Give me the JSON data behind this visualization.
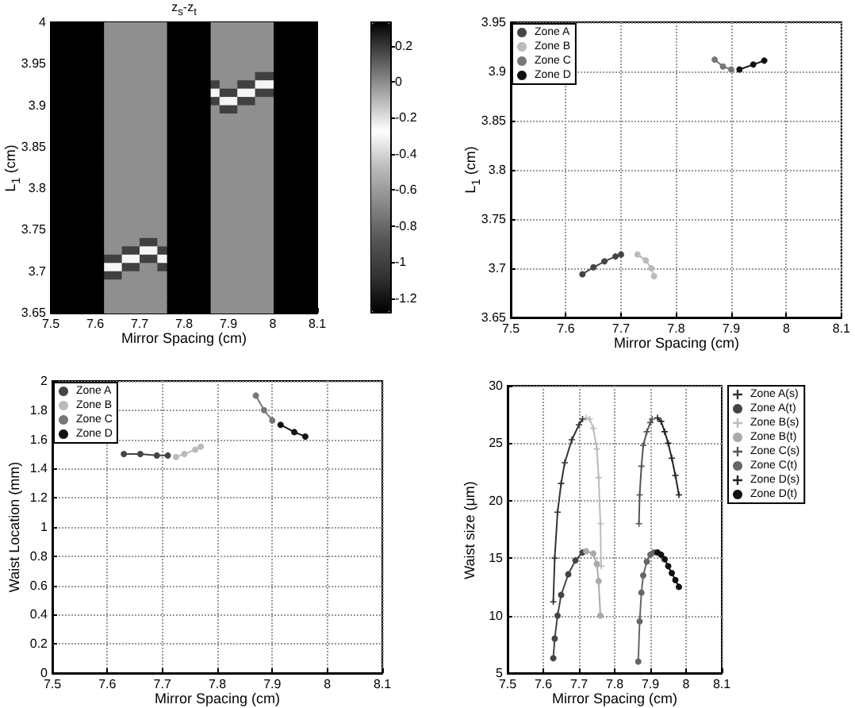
{
  "chart_data": [
    {
      "type": "heatmap",
      "title": "z$_{s}$-z$_{t}$",
      "xlabel": "Mirror Spacing (cm)",
      "ylabel": "L$_{1}$ (cm)",
      "xlim": [
        7.5,
        8.1
      ],
      "xticks": [
        7.5,
        7.6,
        7.7,
        7.8,
        7.9,
        8,
        8.1
      ],
      "ylim": [
        3.65,
        4
      ],
      "yticks": [
        3.65,
        3.7,
        3.75,
        3.8,
        3.85,
        3.9,
        3.95,
        4
      ],
      "clim": [
        -1.28,
        0.33
      ],
      "cticks": [
        0.2,
        0,
        -0.2,
        -0.4,
        -0.6,
        -0.8,
        -1,
        -1.2
      ],
      "cells": [
        [
          null,
          null,
          null,
          null,
          null,
          null,
          -0.65,
          -0.65,
          -0.65,
          -0.65,
          -0.65,
          -0.65,
          -0.65,
          null,
          null,
          null,
          null,
          null,
          -0.65,
          -0.65,
          -0.65,
          -0.65,
          -0.65,
          -0.65,
          -0.65,
          null,
          null,
          null,
          null,
          null
        ],
        [
          null,
          null,
          null,
          null,
          null,
          null,
          -0.65,
          -0.65,
          -0.65,
          -0.65,
          -0.65,
          -0.65,
          -0.65,
          null,
          null,
          null,
          null,
          null,
          -0.65,
          -0.65,
          -0.65,
          -0.65,
          -0.65,
          -0.65,
          -0.65,
          null,
          null,
          null,
          null,
          null
        ],
        [
          null,
          null,
          null,
          null,
          null,
          null,
          -0.65,
          -0.65,
          -0.65,
          -0.65,
          -0.65,
          -0.65,
          -0.65,
          null,
          null,
          null,
          null,
          null,
          -0.65,
          -0.65,
          -0.65,
          -0.65,
          -0.65,
          -0.65,
          -0.65,
          null,
          null,
          null,
          null,
          null
        ],
        [
          null,
          null,
          null,
          null,
          null,
          null,
          -0.65,
          -0.65,
          -0.65,
          -0.65,
          -0.65,
          -0.65,
          -0.65,
          null,
          null,
          null,
          null,
          null,
          -0.65,
          -0.65,
          -0.65,
          -0.65,
          -0.65,
          -0.65,
          -0.65,
          null,
          null,
          null,
          null,
          null
        ],
        [
          null,
          null,
          null,
          null,
          null,
          null,
          -0.65,
          -0.65,
          -0.65,
          -0.65,
          -0.65,
          -0.65,
          -0.65,
          null,
          null,
          null,
          null,
          null,
          -0.65,
          -0.65,
          -0.65,
          -0.65,
          -0.65,
          -0.65,
          -0.65,
          null,
          null,
          null,
          null,
          null
        ],
        [
          null,
          null,
          null,
          null,
          null,
          null,
          -0.65,
          -0.65,
          -0.65,
          -0.65,
          -0.65,
          -0.65,
          -0.65,
          null,
          null,
          null,
          null,
          null,
          -0.65,
          -0.65,
          -0.65,
          -0.65,
          -0.65,
          -0.65,
          -0.65,
          null,
          null,
          null,
          null,
          null
        ],
        [
          null,
          null,
          null,
          null,
          null,
          null,
          -0.65,
          -0.65,
          -0.65,
          -0.65,
          -0.65,
          -0.65,
          -0.65,
          null,
          null,
          null,
          null,
          null,
          -0.65,
          -0.65,
          -0.65,
          -0.65,
          -0.65,
          -1,
          -1,
          null,
          null,
          null,
          null,
          null
        ],
        [
          null,
          null,
          null,
          null,
          null,
          null,
          -0.65,
          -0.65,
          -0.65,
          -0.65,
          -0.65,
          -0.65,
          -0.65,
          null,
          null,
          null,
          null,
          null,
          -1,
          -0.65,
          -0.65,
          -1,
          -1,
          -0.25,
          -0.25,
          null,
          null,
          null,
          null,
          null
        ],
        [
          null,
          null,
          null,
          null,
          null,
          null,
          -0.65,
          -0.65,
          -0.65,
          -0.65,
          -0.65,
          -0.65,
          -0.65,
          null,
          null,
          null,
          null,
          null,
          -0.25,
          -1,
          -1,
          -0.25,
          -0.25,
          -1,
          -1,
          null,
          null,
          null,
          null,
          null
        ],
        [
          null,
          null,
          null,
          null,
          null,
          null,
          -0.65,
          -0.65,
          -0.65,
          -0.65,
          -0.65,
          -0.65,
          -0.65,
          null,
          null,
          null,
          null,
          null,
          -1,
          -0.25,
          -0.25,
          -1,
          -1,
          -0.65,
          -0.65,
          null,
          null,
          null,
          null,
          null
        ],
        [
          null,
          null,
          null,
          null,
          null,
          null,
          -0.65,
          -0.65,
          -0.65,
          -0.65,
          -0.65,
          -0.65,
          -0.65,
          null,
          null,
          null,
          null,
          null,
          -0.65,
          -1,
          -1,
          -0.65,
          -0.65,
          -0.65,
          -0.65,
          null,
          null,
          null,
          null,
          null
        ],
        [
          null,
          null,
          null,
          null,
          null,
          null,
          -0.65,
          -0.65,
          -0.65,
          -0.65,
          -0.65,
          -0.65,
          -0.65,
          null,
          null,
          null,
          null,
          null,
          -0.65,
          -0.65,
          -0.65,
          -0.65,
          -0.65,
          -0.65,
          -0.65,
          null,
          null,
          null,
          null,
          null
        ],
        [
          null,
          null,
          null,
          null,
          null,
          null,
          -0.65,
          -0.65,
          -0.65,
          -0.65,
          -0.65,
          -0.65,
          -0.65,
          null,
          null,
          null,
          null,
          null,
          -0.65,
          -0.65,
          -0.65,
          -0.65,
          -0.65,
          -0.65,
          -0.65,
          null,
          null,
          null,
          null,
          null
        ],
        [
          null,
          null,
          null,
          null,
          null,
          null,
          -0.65,
          -0.65,
          -0.65,
          -0.65,
          -0.65,
          -0.65,
          -0.65,
          null,
          null,
          null,
          null,
          null,
          -0.65,
          -0.65,
          -0.65,
          -0.65,
          -0.65,
          -0.65,
          -0.65,
          null,
          null,
          null,
          null,
          null
        ],
        [
          null,
          null,
          null,
          null,
          null,
          null,
          -0.65,
          -0.65,
          -0.65,
          -0.65,
          -0.65,
          -0.65,
          -0.65,
          null,
          null,
          null,
          null,
          null,
          -0.65,
          -0.65,
          -0.65,
          -0.65,
          -0.65,
          -0.65,
          -0.65,
          null,
          null,
          null,
          null,
          null
        ],
        [
          null,
          null,
          null,
          null,
          null,
          null,
          -0.65,
          -0.65,
          -0.65,
          -0.65,
          -0.65,
          -0.65,
          -0.65,
          null,
          null,
          null,
          null,
          null,
          -0.65,
          -0.65,
          -0.65,
          -0.65,
          -0.65,
          -0.65,
          -0.65,
          null,
          null,
          null,
          null,
          null
        ],
        [
          null,
          null,
          null,
          null,
          null,
          null,
          -0.65,
          -0.65,
          -0.65,
          -0.65,
          -0.65,
          -0.65,
          -0.65,
          null,
          null,
          null,
          null,
          null,
          -0.65,
          -0.65,
          -0.65,
          -0.65,
          -0.65,
          -0.65,
          -0.65,
          null,
          null,
          null,
          null,
          null
        ],
        [
          null,
          null,
          null,
          null,
          null,
          null,
          -0.65,
          -0.65,
          -0.65,
          -0.65,
          -0.65,
          -0.65,
          -0.65,
          null,
          null,
          null,
          null,
          null,
          -0.65,
          -0.65,
          -0.65,
          -0.65,
          -0.65,
          -0.65,
          -0.65,
          null,
          null,
          null,
          null,
          null
        ],
        [
          null,
          null,
          null,
          null,
          null,
          null,
          -0.65,
          -0.65,
          -0.65,
          -0.65,
          -0.65,
          -0.65,
          -0.65,
          null,
          null,
          null,
          null,
          null,
          -0.65,
          -0.65,
          -0.65,
          -0.65,
          -0.65,
          -0.65,
          -0.65,
          null,
          null,
          null,
          null,
          null
        ],
        [
          null,
          null,
          null,
          null,
          null,
          null,
          -0.65,
          -0.65,
          -0.65,
          -0.65,
          -0.65,
          -0.65,
          -0.65,
          null,
          null,
          null,
          null,
          null,
          -0.65,
          -0.65,
          -0.65,
          -0.65,
          -0.65,
          -0.65,
          -0.65,
          null,
          null,
          null,
          null,
          null
        ],
        [
          null,
          null,
          null,
          null,
          null,
          null,
          -0.65,
          -0.65,
          -0.65,
          -0.65,
          -0.65,
          -0.65,
          -0.65,
          null,
          null,
          null,
          null,
          null,
          -0.65,
          -0.65,
          -0.65,
          -0.65,
          -0.65,
          -0.65,
          -0.65,
          null,
          null,
          null,
          null,
          null
        ],
        [
          null,
          null,
          null,
          null,
          null,
          null,
          -0.65,
          -0.65,
          -0.65,
          -0.65,
          -0.65,
          -0.65,
          -0.65,
          null,
          null,
          null,
          null,
          null,
          -0.65,
          -0.65,
          -0.65,
          -0.65,
          -0.65,
          -0.65,
          -0.65,
          null,
          null,
          null,
          null,
          null
        ],
        [
          null,
          null,
          null,
          null,
          null,
          null,
          -0.65,
          -0.65,
          -0.65,
          -0.65,
          -0.65,
          -0.65,
          -0.65,
          null,
          null,
          null,
          null,
          null,
          -0.65,
          -0.65,
          -0.65,
          -0.65,
          -0.65,
          -0.65,
          -0.65,
          null,
          null,
          null,
          null,
          null
        ],
        [
          null,
          null,
          null,
          null,
          null,
          null,
          -0.65,
          -0.65,
          -0.65,
          -0.65,
          -0.65,
          -0.65,
          -0.65,
          null,
          null,
          null,
          null,
          null,
          -0.65,
          -0.65,
          -0.65,
          -0.65,
          -0.65,
          -0.65,
          -0.65,
          null,
          null,
          null,
          null,
          null
        ],
        [
          null,
          null,
          null,
          null,
          null,
          null,
          -0.65,
          -0.65,
          -0.65,
          -0.65,
          -0.65,
          -0.65,
          -0.65,
          null,
          null,
          null,
          null,
          null,
          -0.65,
          -0.65,
          -0.65,
          -0.65,
          -0.65,
          -0.65,
          -0.65,
          null,
          null,
          null,
          null,
          null
        ],
        [
          null,
          null,
          null,
          null,
          null,
          null,
          -0.65,
          -0.65,
          -0.65,
          -0.65,
          -0.65,
          -0.65,
          -0.65,
          null,
          null,
          null,
          null,
          null,
          -0.65,
          -0.65,
          -0.65,
          -0.65,
          -0.65,
          -0.65,
          -0.65,
          null,
          null,
          null,
          null,
          null
        ],
        [
          null,
          null,
          null,
          null,
          null,
          null,
          -0.65,
          -0.65,
          -0.65,
          -0.65,
          -1,
          -1,
          -0.65,
          null,
          null,
          null,
          null,
          null,
          -0.65,
          -0.65,
          -0.65,
          -0.65,
          -0.65,
          -0.65,
          -0.65,
          null,
          null,
          null,
          null,
          null
        ],
        [
          null,
          null,
          null,
          null,
          null,
          null,
          -0.65,
          -0.65,
          -1,
          -1,
          -0.25,
          -0.25,
          -1,
          null,
          null,
          null,
          null,
          null,
          -0.65,
          -0.65,
          -0.65,
          -0.65,
          -0.65,
          -0.65,
          -0.65,
          null,
          null,
          null,
          null,
          null
        ],
        [
          null,
          null,
          null,
          null,
          null,
          null,
          -1,
          -1,
          -0.25,
          -0.25,
          -1,
          -1,
          -0.25,
          null,
          null,
          null,
          null,
          null,
          -0.65,
          -0.65,
          -0.65,
          -0.65,
          -0.65,
          -0.65,
          -0.65,
          null,
          null,
          null,
          null,
          null
        ],
        [
          null,
          null,
          null,
          null,
          null,
          null,
          -0.25,
          -0.25,
          -1,
          -1,
          -0.65,
          -0.65,
          -1,
          null,
          null,
          null,
          null,
          null,
          -0.65,
          -0.65,
          -0.65,
          -0.65,
          -0.65,
          -0.65,
          -0.65,
          null,
          null,
          null,
          null,
          null
        ],
        [
          null,
          null,
          null,
          null,
          null,
          null,
          -1,
          -1,
          -0.65,
          -0.65,
          -0.65,
          -0.65,
          -0.65,
          null,
          null,
          null,
          null,
          null,
          -0.65,
          -0.65,
          -0.65,
          -0.65,
          -0.65,
          -0.65,
          -0.65,
          null,
          null,
          null,
          null,
          null
        ],
        [
          null,
          null,
          null,
          null,
          null,
          null,
          -0.65,
          -0.65,
          -0.65,
          -0.65,
          -0.65,
          -0.65,
          -0.65,
          null,
          null,
          null,
          null,
          null,
          -0.65,
          -0.65,
          -0.65,
          -0.65,
          -0.65,
          -0.65,
          -0.65,
          null,
          null,
          null,
          null,
          null
        ],
        [
          null,
          null,
          null,
          null,
          null,
          null,
          -0.65,
          -0.65,
          -0.65,
          -0.65,
          -0.65,
          -0.65,
          -0.65,
          null,
          null,
          null,
          null,
          null,
          -0.65,
          -0.65,
          -0.65,
          -0.65,
          -0.65,
          -0.65,
          -0.65,
          null,
          null,
          null,
          null,
          null
        ],
        [
          null,
          null,
          null,
          null,
          null,
          null,
          -0.65,
          -0.65,
          -0.65,
          -0.65,
          -0.65,
          -0.65,
          -0.65,
          null,
          null,
          null,
          null,
          null,
          -0.65,
          -0.65,
          -0.65,
          -0.65,
          -0.65,
          -0.65,
          -0.65,
          null,
          null,
          null,
          null,
          null
        ],
        [
          null,
          null,
          null,
          null,
          null,
          null,
          -0.65,
          -0.65,
          -0.65,
          -0.65,
          -0.65,
          -0.65,
          -0.65,
          null,
          null,
          null,
          null,
          null,
          -0.65,
          -0.65,
          -0.65,
          -0.65,
          -0.65,
          -0.65,
          -0.65,
          null,
          null,
          null,
          null,
          null
        ]
      ]
    },
    {
      "type": "line",
      "xlabel": "Mirror Spacing (cm)",
      "ylabel": "L$_{1}$ (cm)",
      "xlim": [
        7.5,
        8.1
      ],
      "xticks": [
        7.5,
        7.6,
        7.7,
        7.8,
        7.9,
        8,
        8.1
      ],
      "ylim": [
        3.65,
        3.95
      ],
      "yticks": [
        3.65,
        3.7,
        3.75,
        3.8,
        3.85,
        3.9,
        3.95
      ],
      "grid": true,
      "legend": "top left",
      "marker": "circle",
      "line_style": "solid",
      "series": [
        {
          "name": "Zone A",
          "color": "#444444",
          "x": [
            7.63,
            7.65,
            7.67,
            7.69,
            7.7
          ],
          "values": [
            3.694,
            3.701,
            3.707,
            3.712,
            3.714
          ]
        },
        {
          "name": "Zone B",
          "color": "#bbbbbb",
          "x": [
            7.73,
            7.745,
            7.755,
            7.76
          ],
          "values": [
            3.714,
            3.708,
            3.7,
            3.692
          ]
        },
        {
          "name": "Zone C",
          "color": "#777777",
          "x": [
            7.87,
            7.885,
            7.9
          ],
          "values": [
            3.912,
            3.905,
            3.902
          ]
        },
        {
          "name": "Zone D",
          "color": "#111111",
          "x": [
            7.915,
            7.94,
            7.96
          ],
          "values": [
            3.902,
            3.907,
            3.911
          ]
        }
      ]
    },
    {
      "type": "line",
      "xlabel": "Mirror Spacing (cm)",
      "ylabel": "Waist Location (mm)",
      "xlim": [
        7.5,
        8.1
      ],
      "xticks": [
        7.5,
        7.6,
        7.7,
        7.8,
        7.9,
        8,
        8.1
      ],
      "ylim": [
        0,
        2
      ],
      "yticks": [
        0,
        0.2,
        0.4,
        0.6,
        0.8,
        1,
        1.2,
        1.4,
        1.6,
        1.8,
        2
      ],
      "grid": true,
      "legend": "top left",
      "marker": "circle",
      "line_style": "solid",
      "series": [
        {
          "name": "Zone A",
          "color": "#444444",
          "x": [
            7.63,
            7.66,
            7.69,
            7.71
          ],
          "values": [
            1.5,
            1.5,
            1.49,
            1.49
          ]
        },
        {
          "name": "Zone B",
          "color": "#bbbbbb",
          "x": [
            7.725,
            7.74,
            7.76,
            7.77
          ],
          "values": [
            1.48,
            1.5,
            1.53,
            1.55
          ]
        },
        {
          "name": "Zone C",
          "color": "#777777",
          "x": [
            7.87,
            7.885,
            7.9
          ],
          "values": [
            1.9,
            1.8,
            1.73
          ]
        },
        {
          "name": "Zone D",
          "color": "#111111",
          "x": [
            7.915,
            7.94,
            7.96
          ],
          "values": [
            1.7,
            1.65,
            1.62
          ]
        }
      ]
    },
    {
      "type": "line",
      "xlabel": "Mirror Spacing (cm)",
      "ylabel": "Waist size (μm)",
      "xlim": [
        7.5,
        8.1
      ],
      "xticks": [
        7.5,
        7.6,
        7.7,
        7.8,
        7.9,
        8,
        8.1
      ],
      "ylim": [
        5,
        30
      ],
      "yticks": [
        5,
        10,
        15,
        20,
        25,
        30
      ],
      "grid": true,
      "legend": "right",
      "line_style": "solid",
      "series": [
        {
          "name": "Zone A(s)",
          "color": "#333333",
          "marker": "cross",
          "x": [
            7.628,
            7.632,
            7.64,
            7.65,
            7.66,
            7.68,
            7.7,
            7.71
          ],
          "values": [
            11.2,
            15,
            19,
            21.5,
            23.3,
            25.3,
            26.6,
            27.1
          ]
        },
        {
          "name": "Zone A(t)",
          "color": "#444444",
          "marker": "circle",
          "x": [
            7.628,
            7.632,
            7.64,
            7.65,
            7.67,
            7.69,
            7.71
          ],
          "values": [
            6.3,
            8,
            10,
            11.8,
            13.6,
            14.8,
            15.5
          ]
        },
        {
          "name": "Zone B(s)",
          "color": "#bbbbbb",
          "marker": "cross",
          "x": [
            7.72,
            7.73,
            7.74,
            7.75,
            7.755,
            7.76,
            7.762
          ],
          "values": [
            27.2,
            27.1,
            26.3,
            24.5,
            22,
            18,
            14.3
          ]
        },
        {
          "name": "Zone B(t)",
          "color": "#aaaaaa",
          "marker": "circle",
          "x": [
            7.72,
            7.74,
            7.75,
            7.755,
            7.76
          ],
          "values": [
            15.6,
            15.4,
            14.5,
            13,
            10
          ]
        },
        {
          "name": "Zone C(s)",
          "color": "#555555",
          "marker": "cross",
          "x": [
            7.868,
            7.87,
            7.875,
            7.88,
            7.89,
            7.9,
            7.905
          ],
          "values": [
            18,
            20.5,
            23,
            24.8,
            26,
            26.8,
            27.1
          ]
        },
        {
          "name": "Zone C(t)",
          "color": "#666666",
          "marker": "circle",
          "x": [
            7.866,
            7.87,
            7.875,
            7.88,
            7.89,
            7.9,
            7.91
          ],
          "values": [
            6,
            9.5,
            12,
            13.5,
            14.7,
            15.3,
            15.5
          ]
        },
        {
          "name": "Zone D(s)",
          "color": "#222222",
          "marker": "cross",
          "x": [
            7.92,
            7.93,
            7.94,
            7.95,
            7.96,
            7.97,
            7.98
          ],
          "values": [
            27.2,
            26.9,
            26,
            25,
            23.7,
            22.2,
            20.5
          ]
        },
        {
          "name": "Zone D(t)",
          "color": "#111111",
          "marker": "circle",
          "x": [
            7.92,
            7.93,
            7.94,
            7.95,
            7.96,
            7.97,
            7.98
          ],
          "values": [
            15.5,
            15.3,
            14.9,
            14.3,
            13.7,
            13.1,
            12.5
          ]
        }
      ]
    }
  ]
}
